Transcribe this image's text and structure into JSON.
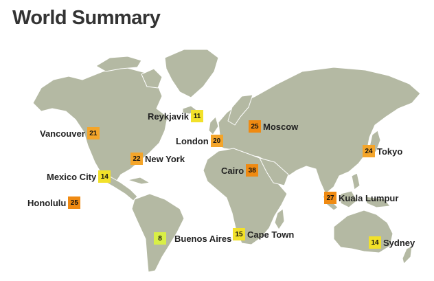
{
  "title": "World Summary",
  "map": {
    "land_color": "#b4b9a3",
    "background": "#ffffff"
  },
  "temperature_colors": {
    "cool": "#d9ef46",
    "mild": "#f2e12a",
    "warm": "#f4a52a",
    "hot": "#ef8a12"
  },
  "cities": [
    {
      "name": "Reykjavik",
      "value": "11",
      "color": "#f2e12a"
    },
    {
      "name": "Vancouver",
      "value": "21",
      "color": "#f4a52a"
    },
    {
      "name": "London",
      "value": "20",
      "color": "#f4a52a"
    },
    {
      "name": "Moscow",
      "value": "25",
      "color": "#ef8a12"
    },
    {
      "name": "New York",
      "value": "22",
      "color": "#f4a52a"
    },
    {
      "name": "Tokyo",
      "value": "24",
      "color": "#f4a52a"
    },
    {
      "name": "Cairo",
      "value": "38",
      "color": "#ef8a12"
    },
    {
      "name": "Mexico City",
      "value": "14",
      "color": "#f2e12a"
    },
    {
      "name": "Honolulu",
      "value": "25",
      "color": "#ef8a12"
    },
    {
      "name": "Kuala Lumpur",
      "value": "27",
      "color": "#ef8a12"
    },
    {
      "name": "Buenos Aires",
      "value": "8",
      "color": "#d9ef46"
    },
    {
      "name": "Cape Town",
      "value": "15",
      "color": "#f2e12a"
    },
    {
      "name": "Sydney",
      "value": "14",
      "color": "#f2e12a"
    }
  ]
}
